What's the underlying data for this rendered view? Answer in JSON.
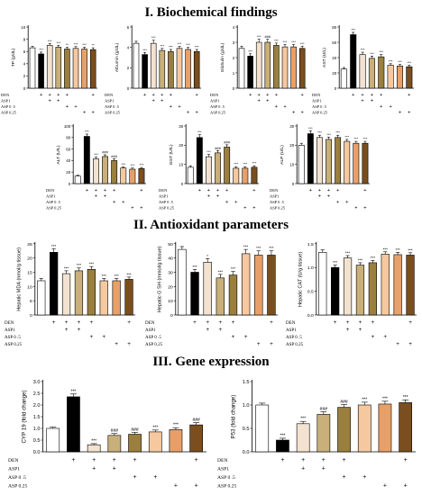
{
  "sections": [
    {
      "title": "I. Biochemical findings"
    },
    {
      "title": "II. Antioxidant parameters"
    },
    {
      "title": "III. Gene expression"
    }
  ],
  "colors": {
    "control": "#ffffff",
    "den": "#000000",
    "asp1_alone": "#f2e2cf",
    "den_asp1": "#c9b07a",
    "den_asp05": "#9b7f3f",
    "asp05_alone": "#f6c8a0",
    "asp025_alone": "#e8a068",
    "den_asp025": "#7a4e1e"
  },
  "chart_data": [
    {
      "type": "bar",
      "panel": "biochem-tp",
      "ylabel": "TP (g/dL)",
      "yticks": [
        "0",
        "2",
        "4",
        "6",
        "8",
        "10"
      ],
      "ylim": [
        0,
        10
      ],
      "values": [
        6.6,
        5.6,
        7.0,
        6.7,
        6.4,
        6.5,
        6.4,
        6.3
      ],
      "errors": [
        0.25,
        0.3,
        0.3,
        0.3,
        0.3,
        0.3,
        0.3,
        0.3
      ],
      "annotations": [
        "",
        "***",
        "***",
        "***",
        "**",
        "***",
        "***",
        "**"
      ],
      "rows": [
        {
          "label": "DEN",
          "marks": [
            "",
            "+",
            "+",
            "+",
            "+",
            "",
            "",
            "+"
          ]
        },
        {
          "label": "ASP1",
          "marks": [
            "",
            "",
            "+",
            "+",
            "",
            "",
            "",
            ""
          ]
        },
        {
          "label": "ASP 0 .5",
          "marks": [
            "",
            "",
            "",
            "",
            "+",
            "+",
            "",
            ""
          ]
        },
        {
          "label": "ASP 0.25",
          "marks": [
            "",
            "",
            "",
            "",
            "",
            "",
            "+",
            "+"
          ]
        }
      ]
    },
    {
      "type": "bar",
      "panel": "biochem-albumin",
      "ylabel": "Albumin (g/dL)",
      "yticks": [
        "0",
        "2",
        "4",
        "6"
      ],
      "ylim": [
        0,
        6
      ],
      "values": [
        4.4,
        3.3,
        4.4,
        3.7,
        3.6,
        3.9,
        3.8,
        3.6
      ],
      "errors": [
        0.2,
        0.2,
        0.3,
        0.2,
        0.2,
        0.2,
        0.2,
        0.2
      ],
      "annotations": [
        "",
        "***",
        "***",
        "***",
        "***",
        "***",
        "***",
        "***"
      ],
      "rows": [
        {
          "label": "DEN",
          "marks": [
            "",
            "+",
            "+",
            "+",
            "+",
            "",
            "",
            "+"
          ]
        },
        {
          "label": "ASP1",
          "marks": [
            "",
            "",
            "+",
            "+",
            "",
            "",
            "",
            ""
          ]
        },
        {
          "label": "ASP 0 .5",
          "marks": [
            "",
            "",
            "",
            "",
            "+",
            "+",
            "",
            ""
          ]
        },
        {
          "label": "ASP 0.25",
          "marks": [
            "",
            "",
            "",
            "",
            "",
            "",
            "+",
            "+"
          ]
        }
      ]
    },
    {
      "type": "bar",
      "panel": "biochem-globulin",
      "ylabel": "Globulin (g/dL)",
      "yticks": [
        "0",
        "1",
        "2",
        "3",
        "4"
      ],
      "ylim": [
        0,
        4
      ],
      "values": [
        2.6,
        2.1,
        3.0,
        3.0,
        2.8,
        2.7,
        2.7,
        2.6
      ],
      "errors": [
        0.15,
        0.15,
        0.2,
        0.2,
        0.15,
        0.15,
        0.15,
        0.15
      ],
      "annotations": [
        "",
        "***",
        "***",
        "###",
        "***",
        "***",
        "***",
        "***"
      ],
      "rows": [
        {
          "label": "DEN",
          "marks": [
            "",
            "+",
            "+",
            "+",
            "+",
            "",
            "",
            "+"
          ]
        },
        {
          "label": "ASP1",
          "marks": [
            "",
            "",
            "+",
            "+",
            "",
            "",
            "",
            ""
          ]
        },
        {
          "label": "ASP 0 .5",
          "marks": [
            "",
            "",
            "",
            "",
            "+",
            "+",
            "",
            ""
          ]
        },
        {
          "label": "ASP 0.25",
          "marks": [
            "",
            "",
            "",
            "",
            "",
            "",
            "+",
            "+"
          ]
        }
      ]
    },
    {
      "type": "bar",
      "panel": "biochem-ast",
      "ylabel": "AST (U/L)",
      "yticks": [
        "0",
        "20",
        "40",
        "60",
        "80"
      ],
      "ylim": [
        0,
        80
      ],
      "values": [
        25,
        70,
        44,
        39,
        41,
        30,
        29,
        28
      ],
      "errors": [
        2,
        3,
        3,
        3,
        3,
        2,
        2,
        2
      ],
      "annotations": [
        "",
        "***",
        "***",
        "***",
        "***",
        "***",
        "***",
        "***"
      ],
      "rows": [
        {
          "label": "DEN",
          "marks": [
            "",
            "+",
            "+",
            "+",
            "+",
            "",
            "",
            "+"
          ]
        },
        {
          "label": "ASP1",
          "marks": [
            "",
            "",
            "+",
            "+",
            "",
            "",
            "",
            ""
          ]
        },
        {
          "label": "ASP 0 .5",
          "marks": [
            "",
            "",
            "",
            "",
            "+",
            "+",
            "",
            ""
          ]
        },
        {
          "label": "ASP 0.25",
          "marks": [
            "",
            "",
            "",
            "",
            "",
            "",
            "+",
            "+"
          ]
        }
      ]
    },
    {
      "type": "bar",
      "panel": "biochem-alt",
      "ylabel": "ALT (U/L)",
      "yticks": [
        "0",
        "20",
        "40",
        "60",
        "80",
        "100"
      ],
      "ylim": [
        0,
        100
      ],
      "values": [
        13,
        82,
        43,
        47,
        40,
        27,
        25,
        26
      ],
      "errors": [
        1.5,
        4,
        3,
        3,
        3,
        2,
        2,
        2
      ],
      "annotations": [
        "",
        "***",
        "***",
        "###",
        "###",
        "***",
        "***",
        "***"
      ],
      "rows": [
        {
          "label": "DEN",
          "marks": [
            "",
            "+",
            "+",
            "+",
            "+",
            "",
            "",
            "+"
          ]
        },
        {
          "label": "ASP1",
          "marks": [
            "",
            "",
            "+",
            "+",
            "",
            "",
            "",
            ""
          ]
        },
        {
          "label": "ASP 0 .5",
          "marks": [
            "",
            "",
            "",
            "",
            "+",
            "+",
            "",
            ""
          ]
        },
        {
          "label": "ASP 0.25",
          "marks": [
            "",
            "",
            "",
            "",
            "",
            "",
            "+",
            "+"
          ]
        }
      ]
    },
    {
      "type": "bar",
      "panel": "biochem-ggt",
      "ylabel": "GGT (U/L)",
      "yticks": [
        "0",
        "10",
        "20",
        "30"
      ],
      "ylim": [
        0,
        30
      ],
      "values": [
        8.5,
        24,
        14,
        16,
        19,
        8,
        8,
        8.5
      ],
      "errors": [
        0.8,
        1.5,
        1.2,
        1.2,
        1.2,
        0.8,
        0.8,
        0.8
      ],
      "annotations": [
        "",
        "***",
        "***",
        "###",
        "###",
        "***",
        "***",
        "***"
      ],
      "rows": [
        {
          "label": "DEN",
          "marks": [
            "",
            "+",
            "+",
            "+",
            "+",
            "",
            "",
            "+"
          ]
        },
        {
          "label": "ASP1",
          "marks": [
            "",
            "",
            "+",
            "+",
            "",
            "",
            "",
            ""
          ]
        },
        {
          "label": "ASP 0 .5",
          "marks": [
            "",
            "",
            "",
            "",
            "+",
            "+",
            "",
            ""
          ]
        },
        {
          "label": "ASP 0.25",
          "marks": [
            "",
            "",
            "",
            "",
            "",
            "",
            "+",
            "+"
          ]
        }
      ]
    },
    {
      "type": "bar",
      "panel": "biochem-alp",
      "ylabel": "ALP (U/L)",
      "yticks": [
        "0",
        "10",
        "20",
        "30"
      ],
      "ylim": [
        0,
        30
      ],
      "values": [
        20,
        26,
        24,
        23,
        24,
        22,
        21,
        21
      ],
      "errors": [
        1,
        1.5,
        1.2,
        1.2,
        1.2,
        1,
        1,
        1
      ],
      "annotations": [
        "",
        "***",
        "***",
        "***",
        "***",
        "***",
        "***",
        "***"
      ],
      "rows": [
        {
          "label": "DEN",
          "marks": [
            "",
            "+",
            "+",
            "+",
            "+",
            "",
            "",
            "+"
          ]
        },
        {
          "label": "ASP1",
          "marks": [
            "",
            "",
            "+",
            "+",
            "",
            "",
            "",
            ""
          ]
        },
        {
          "label": "ASP 0 .5",
          "marks": [
            "",
            "",
            "",
            "",
            "+",
            "+",
            "",
            ""
          ]
        },
        {
          "label": "ASP 0.25",
          "marks": [
            "",
            "",
            "",
            "",
            "",
            "",
            "+",
            "+"
          ]
        }
      ]
    },
    {
      "type": "bar",
      "panel": "antiox-mda",
      "ylabel": "Hepatic MDA (nmol/g tissue)",
      "yticks": [
        "0",
        "5",
        "10",
        "15",
        "20",
        "25"
      ],
      "ylim": [
        0,
        25
      ],
      "values": [
        12,
        22,
        14.5,
        15.5,
        16,
        12,
        12,
        12.5
      ],
      "errors": [
        0.8,
        1.2,
        1,
        1,
        1,
        0.8,
        0.8,
        0.8
      ],
      "annotations": [
        "",
        "***",
        "***",
        "***",
        "***",
        "***",
        "***",
        "***"
      ],
      "rows": [
        {
          "label": "DEN",
          "marks": [
            "",
            "+",
            "+",
            "+",
            "+",
            "",
            "",
            "+"
          ]
        },
        {
          "label": "ASP1",
          "marks": [
            "",
            "",
            "+",
            "+",
            "",
            "",
            "",
            ""
          ]
        },
        {
          "label": "ASP 0 .5",
          "marks": [
            "",
            "",
            "",
            "",
            "+",
            "+",
            "",
            ""
          ]
        },
        {
          "label": "ASP 0.25",
          "marks": [
            "",
            "",
            "",
            "",
            "",
            "",
            "+",
            "+"
          ]
        }
      ]
    },
    {
      "type": "bar",
      "panel": "antiox-gsh",
      "ylabel": "Hepatic G SH (mmol/g tissue)",
      "yticks": [
        "0",
        "10",
        "20",
        "30",
        "40",
        "50"
      ],
      "ylim": [
        0,
        50
      ],
      "values": [
        46,
        30,
        37,
        26,
        28,
        43,
        42,
        42
      ],
      "errors": [
        2,
        2,
        2.5,
        2.5,
        2.5,
        3,
        3,
        3
      ],
      "annotations": [
        "",
        "***",
        "*",
        "***",
        "***",
        "***",
        "***",
        "***"
      ],
      "rows": [
        {
          "label": "DEN",
          "marks": [
            "",
            "+",
            "+",
            "+",
            "+",
            "",
            "",
            "+"
          ]
        },
        {
          "label": "ASP1",
          "marks": [
            "",
            "",
            "+",
            "+",
            "",
            "",
            "",
            ""
          ]
        },
        {
          "label": "ASP 0 .5",
          "marks": [
            "",
            "",
            "",
            "",
            "+",
            "+",
            "",
            ""
          ]
        },
        {
          "label": "ASP 0.25",
          "marks": [
            "",
            "",
            "",
            "",
            "",
            "",
            "+",
            "+"
          ]
        }
      ]
    },
    {
      "type": "bar",
      "panel": "antiox-cat",
      "ylabel": "Hepatic CAT (U/g tissue)",
      "yticks": [
        "0.0",
        "0.5",
        "1.0",
        "1.5"
      ],
      "ylim": [
        0,
        1.5
      ],
      "values": [
        1.32,
        1.0,
        1.2,
        1.05,
        1.1,
        1.28,
        1.27,
        1.26
      ],
      "errors": [
        0.05,
        0.05,
        0.05,
        0.05,
        0.05,
        0.05,
        0.05,
        0.05
      ],
      "annotations": [
        "",
        "***",
        "***",
        "***",
        "***",
        "***",
        "***",
        "***"
      ],
      "rows": [
        {
          "label": "DEN",
          "marks": [
            "",
            "+",
            "+",
            "+",
            "+",
            "",
            "",
            "+"
          ]
        },
        {
          "label": "ASP1",
          "marks": [
            "",
            "",
            "+",
            "+",
            "",
            "",
            "",
            ""
          ]
        },
        {
          "label": "ASP 0 .5",
          "marks": [
            "",
            "",
            "",
            "",
            "+",
            "+",
            "",
            ""
          ]
        },
        {
          "label": "ASP 0.25",
          "marks": [
            "",
            "",
            "",
            "",
            "",
            "",
            "+",
            "+"
          ]
        }
      ]
    },
    {
      "type": "bar",
      "panel": "gene-cyp19",
      "ylabel": "CYP 19 (fold change)",
      "yticks": [
        "0.0",
        "0.5",
        "1.0",
        "1.5",
        "2.0",
        "2.5",
        "3.0"
      ],
      "ylim": [
        0,
        3.0
      ],
      "values": [
        1.0,
        2.35,
        0.3,
        0.7,
        0.75,
        0.85,
        0.95,
        1.15
      ],
      "errors": [
        0.05,
        0.12,
        0.05,
        0.08,
        0.08,
        0.08,
        0.08,
        0.1
      ],
      "annotations": [
        "",
        "***",
        "***",
        "###",
        "###",
        "***",
        "***",
        "###"
      ],
      "rows": [
        {
          "label": "DEN",
          "marks": [
            "",
            "+",
            "+",
            "+",
            "+",
            "",
            "",
            "+"
          ]
        },
        {
          "label": "ASP1",
          "marks": [
            "",
            "",
            "+",
            "+",
            "",
            "",
            "",
            ""
          ]
        },
        {
          "label": "ASP 0 .5",
          "marks": [
            "",
            "",
            "",
            "",
            "+",
            "+",
            "",
            ""
          ]
        },
        {
          "label": "ASP 0.25",
          "marks": [
            "",
            "",
            "",
            "",
            "",
            "",
            "+",
            "+"
          ]
        }
      ]
    },
    {
      "type": "bar",
      "panel": "gene-p53",
      "ylabel": "P53 (fold change)",
      "yticks": [
        "0.0",
        "0.5",
        "1.0",
        "1.5"
      ],
      "ylim": [
        0,
        1.5
      ],
      "values": [
        1.0,
        0.25,
        0.6,
        0.8,
        0.95,
        1.0,
        1.02,
        1.05
      ],
      "errors": [
        0.04,
        0.04,
        0.05,
        0.06,
        0.06,
        0.06,
        0.06,
        0.06
      ],
      "annotations": [
        "",
        "***",
        "***",
        "###",
        "###",
        "***",
        "***",
        "***"
      ],
      "rows": [
        {
          "label": "DEN",
          "marks": [
            "",
            "+",
            "+",
            "+",
            "+",
            "",
            "",
            "+"
          ]
        },
        {
          "label": "ASP1",
          "marks": [
            "",
            "",
            "+",
            "+",
            "",
            "",
            "",
            ""
          ]
        },
        {
          "label": "ASP 0 .5",
          "marks": [
            "",
            "",
            "",
            "",
            "+",
            "+",
            "",
            ""
          ]
        },
        {
          "label": "ASP 0.25",
          "marks": [
            "",
            "",
            "",
            "",
            "",
            "",
            "+",
            "+"
          ]
        }
      ]
    }
  ]
}
